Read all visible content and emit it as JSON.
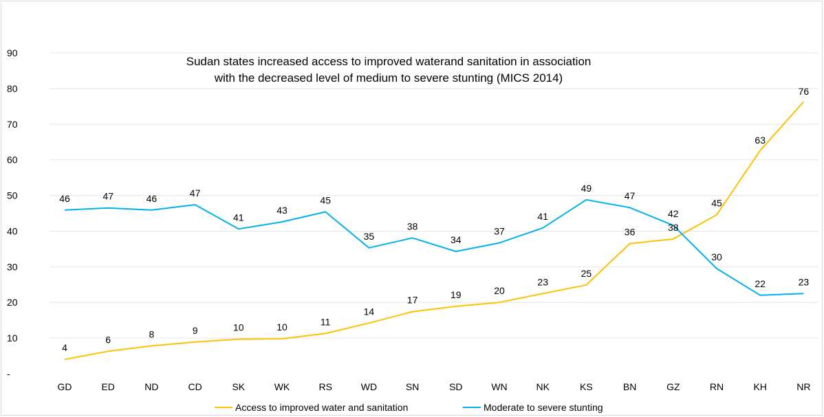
{
  "chart_data": {
    "type": "line",
    "title_line1": "Sudan states increased access to improved waterand sanitation in association",
    "title_line2": "with the decreased level of medium to severe stunting (MICS 2014)",
    "xlabel": "",
    "ylabel": "",
    "ylim": [
      0,
      90
    ],
    "ytick_values": [
      0,
      10,
      20,
      30,
      40,
      50,
      60,
      70,
      80,
      90
    ],
    "ytick_labels": [
      "-",
      "10",
      "20",
      "30",
      "40",
      "50",
      "60",
      "70",
      "80",
      "90"
    ],
    "grid": true,
    "legend_position": "bottom",
    "categories": [
      "GD",
      "ED",
      "ND",
      "CD",
      "SK",
      "WK",
      "RS",
      "WD",
      "SN",
      "SD",
      "WN",
      "NK",
      "KS",
      "BN",
      "GZ",
      "RN",
      "KH",
      "NR"
    ],
    "series": [
      {
        "name": "Access to improved water and sanitation",
        "color": "#FFC000",
        "values": [
          4,
          6.3,
          7.8,
          8.9,
          9.7,
          9.8,
          11.3,
          14.2,
          17.4,
          18.9,
          20,
          22.5,
          24.9,
          36.5,
          37.8,
          44.6,
          62.6,
          76.3
        ],
        "labels": [
          "4",
          "6",
          "8",
          "9",
          "10",
          "10",
          "11",
          "14",
          "17",
          "19",
          "20",
          "23",
          "25",
          "36",
          "38",
          "45",
          "63",
          "76"
        ]
      },
      {
        "name": "Moderate to severe stunting",
        "color": "#00B0F0",
        "values": [
          45.9,
          46.5,
          45.9,
          47.4,
          40.6,
          42.6,
          45.4,
          35.3,
          38.1,
          34.3,
          36.7,
          40.9,
          48.8,
          46.6,
          41.6,
          29.5,
          22,
          22.5
        ],
        "labels": [
          "46",
          "47",
          "46",
          "47",
          "41",
          "43",
          "45",
          "35",
          "38",
          "34",
          "37",
          "41",
          "49",
          "47",
          "42",
          "30",
          "22",
          "23"
        ]
      }
    ]
  }
}
